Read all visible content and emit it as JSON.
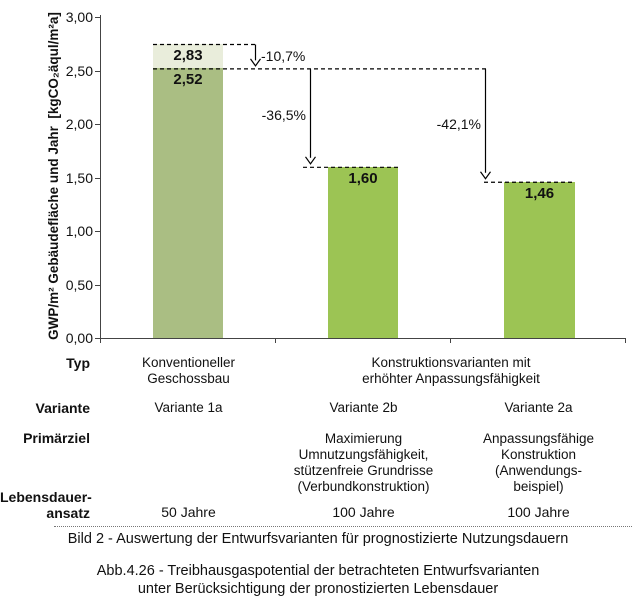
{
  "chart_data": {
    "type": "bar",
    "title": "",
    "ylabel": "GWP/m² Gebäudefläche und Jahr  [kgCO₂äqul/m²a]",
    "xlabel": "",
    "ylim": [
      0,
      3
    ],
    "y_tick_step": 0.5,
    "y_ticks": [
      "3,00",
      "2,50",
      "2,00",
      "1,50",
      "1,00",
      "0,50",
      "0,00"
    ],
    "grid": "off",
    "legend": "none",
    "categories": [
      "Variante 1a",
      "Variante 2b",
      "Variante 2a"
    ],
    "bars": [
      {
        "value": 2.52,
        "label": "2,52",
        "color": "#aabe83",
        "overlay": {
          "value": 2.83,
          "label": "2,83",
          "color": "#e9eddb"
        }
      },
      {
        "value": 1.6,
        "label": "1,60",
        "color": "#9cc454"
      },
      {
        "value": 1.46,
        "label": "1,46",
        "color": "#9cc454"
      }
    ],
    "annotations": [
      {
        "text": "-10,7%",
        "from": 2.83,
        "to": 2.52
      },
      {
        "text": "-36,5%",
        "from": 2.52,
        "to": 1.6
      },
      {
        "text": "-42,1%",
        "from": 2.52,
        "to": 1.46
      }
    ],
    "axis_color": "#444444",
    "annotation_color": "#000000"
  },
  "table": {
    "row_headers": {
      "typ": "Typ",
      "variante": "Variante",
      "primaerziel": "Primärziel",
      "lebensdauer": "Lebensdauer-\nansatz"
    },
    "typ": {
      "col1": "Konventioneller\nGeschossbau",
      "col23": "Konstruktionsvarianten mit\nerhöhter Anpassungsfähigkeit"
    },
    "variante": [
      "Variante 1a",
      "Variante 2b",
      "Variante 2a"
    ],
    "primaerziel": [
      "",
      "Maximierung\nUmnutzungsfähigkeit,\nstützenfreie Grundrisse\n(Verbundkonstruktion)",
      "Anpassungsfähige\nKonstruktion\n(Anwendungs-\nbeispiel)"
    ],
    "lebensdauer": [
      "50 Jahre",
      "100 Jahre",
      "100 Jahre"
    ]
  },
  "captions": {
    "bild": "Bild 2 - Auswertung der Entwurfsvarianten für prognostizierte Nutzungsdauern",
    "abb": "Abb.4.26 - Treibhausgaspotential der betrachteten Entwurfsvarianten\nunter Berücksichtigung der pronostizierten Lebensdauer"
  }
}
